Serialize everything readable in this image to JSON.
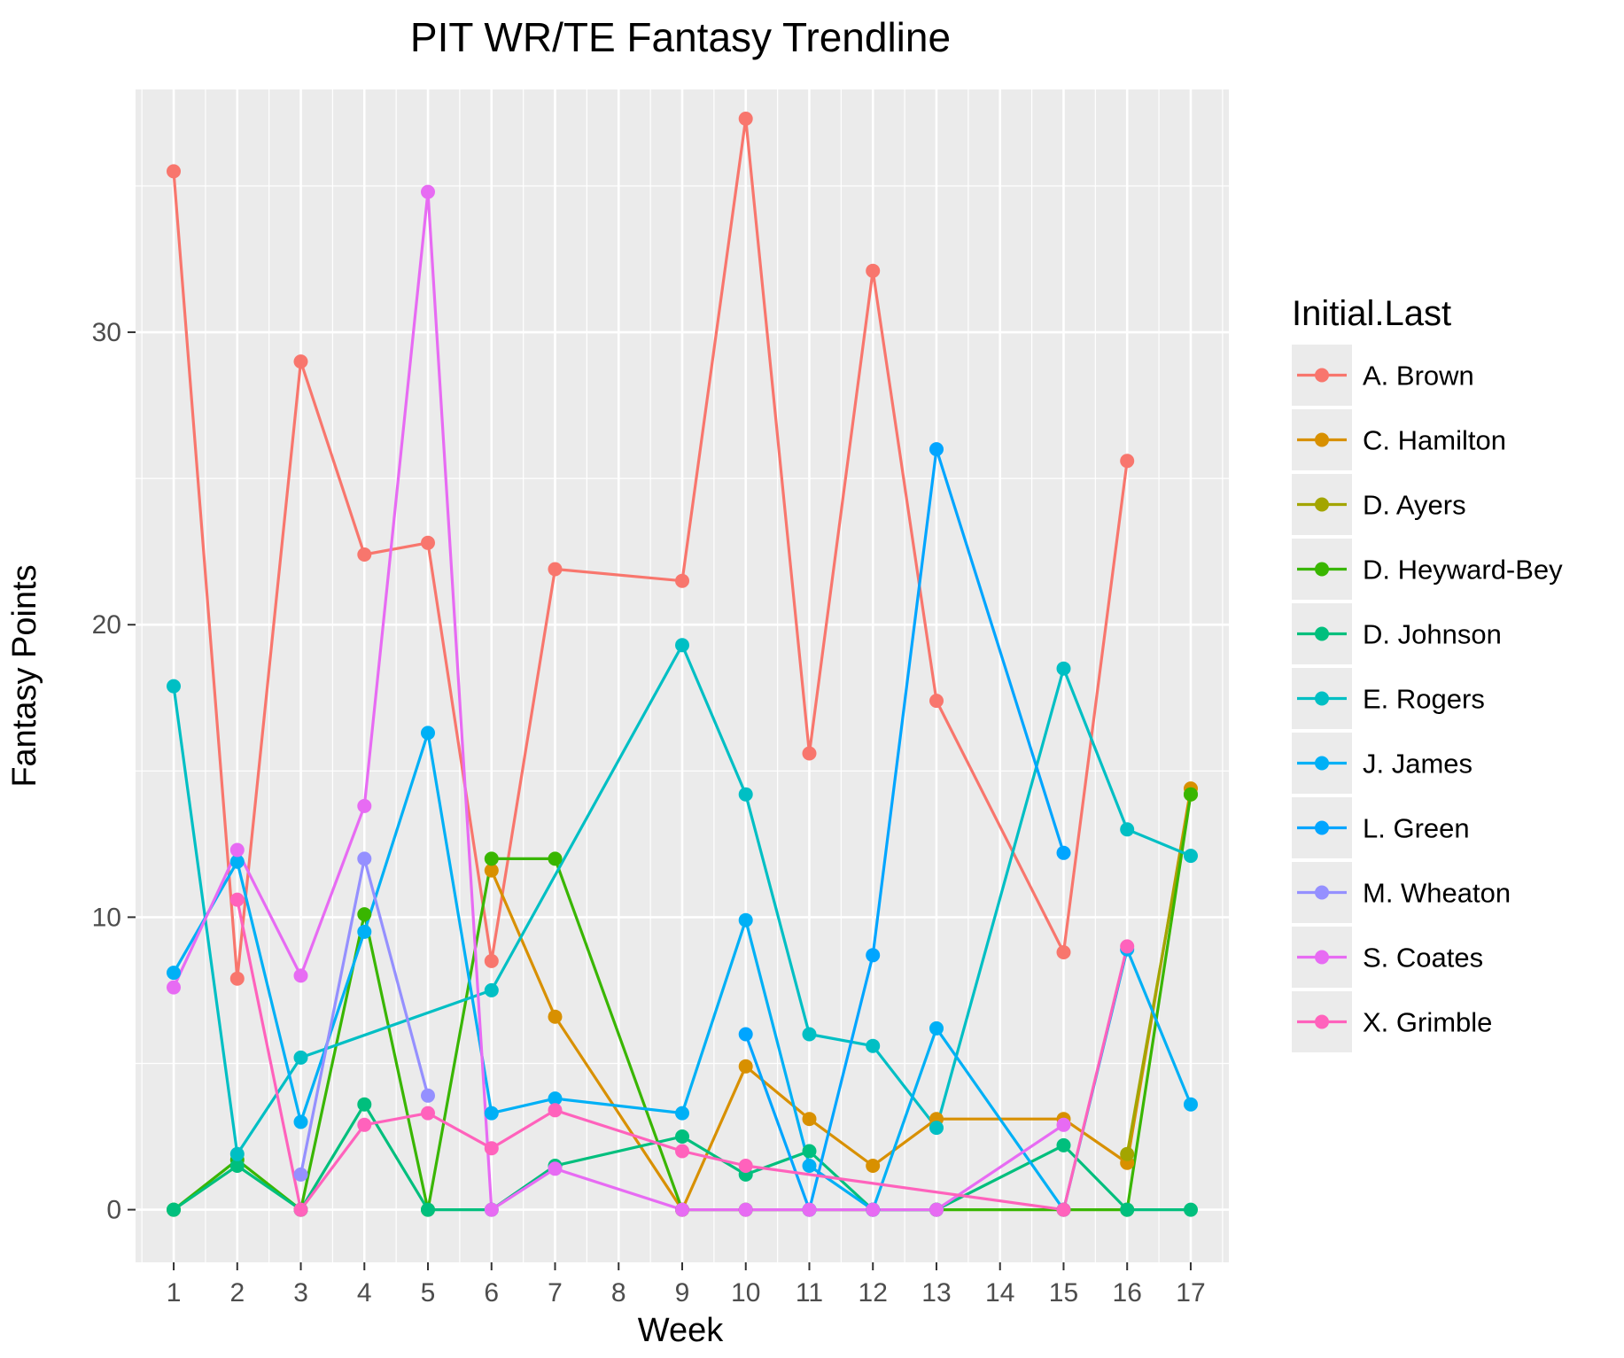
{
  "chart_data": {
    "type": "line",
    "title": "PIT WR/TE Fantasy Trendline",
    "xlabel": "Week",
    "ylabel": "Fantasy Points",
    "x_categories": [
      "1",
      "2",
      "3",
      "4",
      "5",
      "6",
      "7",
      "8",
      "9",
      "10",
      "11",
      "12",
      "13",
      "14",
      "15",
      "16",
      "17"
    ],
    "ylim": [
      -1.8,
      38.3
    ],
    "y_ticks": [
      0,
      10,
      20,
      30
    ],
    "grid": true,
    "legend": {
      "title": "Initial.Last",
      "position": "right"
    },
    "series": [
      {
        "name": "A. Brown",
        "color": "#F8766D",
        "points": [
          [
            1,
            35.5
          ],
          [
            2,
            7.9
          ],
          [
            3,
            29.0
          ],
          [
            4,
            22.4
          ],
          [
            5,
            22.8
          ],
          [
            6,
            8.5
          ],
          [
            7,
            21.9
          ],
          [
            9,
            21.5
          ],
          [
            10,
            37.3
          ],
          [
            11,
            15.6
          ],
          [
            12,
            32.1
          ],
          [
            13,
            17.4
          ],
          [
            15,
            8.8
          ],
          [
            16,
            25.6
          ]
        ]
      },
      {
        "name": "C. Hamilton",
        "color": "#D89000",
        "points": [
          [
            6,
            11.6
          ],
          [
            7,
            6.6
          ],
          [
            9,
            0.0
          ],
          [
            10,
            4.9
          ],
          [
            11,
            3.1
          ],
          [
            12,
            1.5
          ],
          [
            13,
            3.1
          ],
          [
            15,
            3.1
          ],
          [
            16,
            1.6
          ],
          [
            17,
            14.4
          ]
        ]
      },
      {
        "name": "D. Ayers",
        "color": "#A3A500",
        "points": [
          [
            16,
            1.9
          ],
          [
            17,
            14.2
          ]
        ]
      },
      {
        "name": "D. Heyward-Bey",
        "color": "#39B600",
        "points": [
          [
            1,
            0.0
          ],
          [
            2,
            1.7
          ],
          [
            3,
            0.0
          ],
          [
            4,
            10.1
          ],
          [
            5,
            0.0
          ],
          [
            6,
            12.0
          ],
          [
            7,
            12.0
          ],
          [
            9,
            0.0
          ],
          [
            10,
            0.0
          ],
          [
            11,
            0.0
          ],
          [
            12,
            0.0
          ],
          [
            13,
            0.0
          ],
          [
            15,
            0.0
          ],
          [
            16,
            0.0
          ],
          [
            17,
            14.2
          ]
        ]
      },
      {
        "name": "D. Johnson",
        "color": "#00BF7D",
        "points": [
          [
            1,
            0.0
          ],
          [
            2,
            1.5
          ],
          [
            3,
            0.0
          ],
          [
            4,
            3.6
          ],
          [
            5,
            0.0
          ],
          [
            6,
            0.0
          ],
          [
            7,
            1.5
          ],
          [
            9,
            2.5
          ],
          [
            10,
            1.2
          ],
          [
            11,
            2.0
          ],
          [
            12,
            0.0
          ],
          [
            13,
            0.0
          ],
          [
            15,
            2.2
          ],
          [
            16,
            0.0
          ],
          [
            17,
            0.0
          ]
        ]
      },
      {
        "name": "E. Rogers",
        "color": "#00BFC4",
        "points": [
          [
            1,
            17.9
          ],
          [
            2,
            1.9
          ],
          [
            3,
            5.2
          ],
          [
            6,
            7.5
          ],
          [
            9,
            19.3
          ],
          [
            10,
            14.2
          ],
          [
            11,
            6.0
          ],
          [
            12,
            5.6
          ],
          [
            13,
            2.8
          ],
          [
            15,
            18.5
          ],
          [
            16,
            13.0
          ],
          [
            17,
            12.1
          ]
        ]
      },
      {
        "name": "J. James",
        "color": "#00B0F6",
        "points": [
          [
            1,
            8.1
          ],
          [
            2,
            11.9
          ],
          [
            3,
            3.0
          ],
          [
            4,
            9.5
          ],
          [
            5,
            16.3
          ],
          [
            6,
            3.3
          ],
          [
            7,
            3.8
          ],
          [
            9,
            3.3
          ],
          [
            10,
            9.9
          ],
          [
            11,
            1.5
          ],
          [
            12,
            0.0
          ],
          [
            13,
            6.2
          ],
          [
            15,
            0.0
          ],
          [
            16,
            8.9
          ],
          [
            17,
            3.6
          ]
        ]
      },
      {
        "name": "L. Green",
        "color": "#00A5FF",
        "points": [
          [
            10,
            6.0
          ],
          [
            11,
            0.0
          ],
          [
            12,
            8.7
          ],
          [
            13,
            26.0
          ],
          [
            15,
            12.2
          ]
        ]
      },
      {
        "name": "M. Wheaton",
        "color": "#9590FF",
        "points": [
          [
            3,
            1.2
          ],
          [
            4,
            12.0
          ],
          [
            5,
            3.9
          ]
        ]
      },
      {
        "name": "S. Coates",
        "color": "#E76BF3",
        "points": [
          [
            1,
            7.6
          ],
          [
            2,
            12.3
          ],
          [
            3,
            8.0
          ],
          [
            4,
            13.8
          ],
          [
            5,
            34.8
          ],
          [
            6,
            0.0
          ],
          [
            7,
            1.4
          ],
          [
            9,
            0.0
          ],
          [
            10,
            0.0
          ],
          [
            11,
            0.0
          ],
          [
            12,
            0.0
          ],
          [
            13,
            0.0
          ],
          [
            15,
            2.9
          ]
        ]
      },
      {
        "name": "X. Grimble",
        "color": "#FF62BC",
        "points": [
          [
            2,
            10.6
          ],
          [
            3,
            0.0
          ],
          [
            4,
            2.9
          ],
          [
            5,
            3.3
          ],
          [
            6,
            2.1
          ],
          [
            7,
            3.4
          ],
          [
            9,
            2.0
          ],
          [
            10,
            1.5
          ],
          [
            15,
            0.0
          ],
          [
            16,
            9.0
          ]
        ]
      }
    ]
  }
}
